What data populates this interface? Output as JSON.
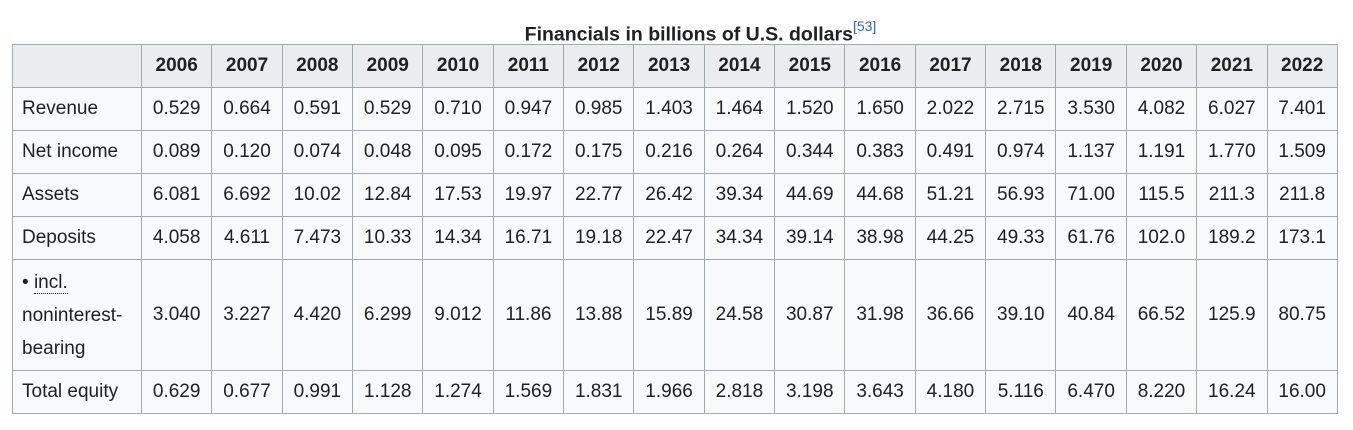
{
  "caption": {
    "text": "Financials in billions of U.S. dollars",
    "ref": "[53]"
  },
  "years": [
    "2006",
    "2007",
    "2008",
    "2009",
    "2010",
    "2011",
    "2012",
    "2013",
    "2014",
    "2015",
    "2016",
    "2017",
    "2018",
    "2019",
    "2020",
    "2021",
    "2022"
  ],
  "rows": [
    {
      "label": "Revenue",
      "values": [
        "0.529",
        "0.664",
        "0.591",
        "0.529",
        "0.710",
        "0.947",
        "0.985",
        "1.403",
        "1.464",
        "1.520",
        "1.650",
        "2.022",
        "2.715",
        "3.530",
        "4.082",
        "6.027",
        "7.401"
      ]
    },
    {
      "label": "Net income",
      "values": [
        "0.089",
        "0.120",
        "0.074",
        "0.048",
        "0.095",
        "0.172",
        "0.175",
        "0.216",
        "0.264",
        "0.344",
        "0.383",
        "0.491",
        "0.974",
        "1.137",
        "1.191",
        "1.770",
        "1.509"
      ]
    },
    {
      "label": "Assets",
      "values": [
        "6.081",
        "6.692",
        "10.02",
        "12.84",
        "17.53",
        "19.97",
        "22.77",
        "26.42",
        "39.34",
        "44.69",
        "44.68",
        "51.21",
        "56.93",
        "71.00",
        "115.5",
        "211.3",
        "211.8"
      ]
    },
    {
      "label": "Deposits",
      "values": [
        "4.058",
        "4.611",
        "7.473",
        "10.33",
        "14.34",
        "16.71",
        "19.18",
        "22.47",
        "34.34",
        "39.14",
        "38.98",
        "44.25",
        "49.33",
        "61.76",
        "102.0",
        "189.2",
        "173.1"
      ]
    },
    {
      "label_bullet": "• ",
      "label_abbr": "incl.",
      "label_rest": "noninterest-bearing",
      "values": [
        "3.040",
        "3.227",
        "4.420",
        "6.299",
        "9.012",
        "11.86",
        "13.88",
        "15.89",
        "24.58",
        "30.87",
        "31.98",
        "36.66",
        "39.10",
        "40.84",
        "66.52",
        "125.9",
        "80.75"
      ]
    },
    {
      "label": "Total equity",
      "values": [
        "0.629",
        "0.677",
        "0.991",
        "1.128",
        "1.274",
        "1.569",
        "1.831",
        "1.966",
        "2.818",
        "3.198",
        "3.643",
        "4.180",
        "5.116",
        "6.470",
        "8.220",
        "16.24",
        "16.00"
      ]
    }
  ]
}
